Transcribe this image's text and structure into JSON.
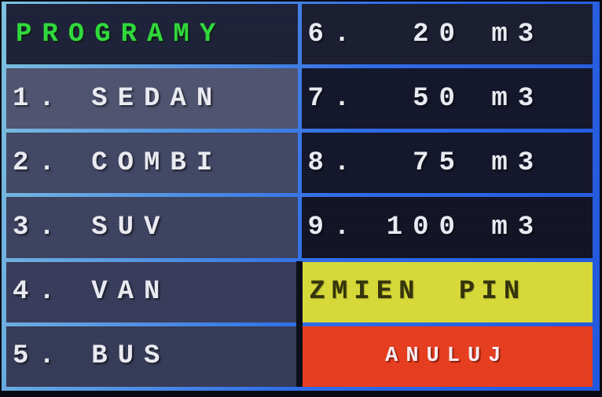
{
  "menu": {
    "title": "PROGRAMY",
    "programs": [
      {
        "key": "1",
        "name": "SEDAN",
        "label": "1. SEDAN"
      },
      {
        "key": "2",
        "name": "COMBI",
        "label": "2. COMBI"
      },
      {
        "key": "3",
        "name": "SUV",
        "label": "3. SUV"
      },
      {
        "key": "4",
        "name": "VAN",
        "label": "4. VAN"
      },
      {
        "key": "5",
        "name": "BUS",
        "label": "5. BUS"
      }
    ],
    "volumes": [
      {
        "key": "6",
        "volume": "20 m3",
        "label": "6.  20 m3"
      },
      {
        "key": "7",
        "volume": "50 m3",
        "label": "7.  50 m3"
      },
      {
        "key": "8",
        "volume": "75 m3",
        "label": "8.  75 m3"
      },
      {
        "key": "9",
        "volume": "100 m3",
        "label": "9. 100 m3"
      }
    ],
    "actions": {
      "change_pin": "ZMIEN PIN",
      "cancel": "ANULUJ"
    }
  },
  "colors": {
    "border_blue": "#2e6ce6",
    "border_blue_light": "#7cc2de",
    "header_bg": "#1d2138",
    "program_cell_bg": "#3a3f5e",
    "volume_cell_bg": "#13162a",
    "title_green": "#2ed83a",
    "item_text": "#e9e9f1",
    "change_pin_bg": "#d6d838",
    "change_pin_text": "#33320a",
    "cancel_bg": "#e53c1e",
    "cancel_text": "#f6ecf2"
  }
}
